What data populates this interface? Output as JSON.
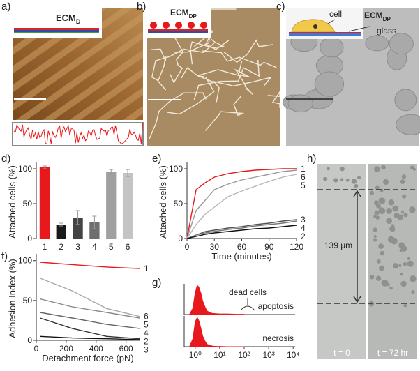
{
  "panels": [
    {
      "label": "a)",
      "inset": {
        "main": "ECM",
        "sub": "D"
      }
    },
    {
      "label": "b)",
      "inset": {
        "main": "ECM",
        "sub": "DP"
      }
    },
    {
      "label": "c)",
      "cell": "cell",
      "ecm": {
        "main": "ECM",
        "sub": "DP"
      },
      "glass": "glass"
    },
    {
      "label": "d)"
    },
    {
      "label": "e)"
    },
    {
      "label": "f)"
    },
    {
      "label": "g)"
    },
    {
      "label": "h)",
      "distance": "139 μm",
      "left": "t = 0",
      "right": "t = 72 hr"
    }
  ],
  "chart_data": [
    {
      "type": "bar",
      "ylabel": "Attached cells (%)",
      "categories": [
        "1",
        "2",
        "3",
        "4",
        "5",
        "6"
      ],
      "values": [
        102,
        20,
        30,
        23,
        96,
        94
      ],
      "errors": [
        2,
        2,
        10,
        9,
        3,
        5
      ],
      "colors": [
        "#e8191c",
        "#1a1a1a",
        "#444444",
        "#6e6e6e",
        "#a0a0a0",
        "#c4c4c4"
      ],
      "ylim": [
        0,
        105
      ],
      "yticks": [
        0,
        50,
        100
      ]
    },
    {
      "type": "line",
      "xlabel": "Time (minutes)",
      "ylabel": "Attached cells (%)",
      "x": [
        0,
        10,
        20,
        30,
        45,
        60,
        75,
        90,
        105,
        120
      ],
      "series": [
        {
          "name": "1",
          "color": "#e8191c",
          "values": [
            0,
            70,
            80,
            88,
            93,
            96,
            98,
            99,
            100,
            100
          ]
        },
        {
          "name": "6",
          "color": "#9a9a9a",
          "values": [
            0,
            40,
            55,
            70,
            78,
            84,
            88,
            92,
            96,
            98
          ]
        },
        {
          "name": "5",
          "color": "#b5b5b5",
          "values": [
            0,
            20,
            35,
            45,
            60,
            68,
            75,
            82,
            88,
            92
          ]
        },
        {
          "name": "3",
          "color": "#555555",
          "values": [
            0,
            5,
            10,
            12,
            15,
            17,
            20,
            22,
            25,
            27
          ]
        },
        {
          "name": "4",
          "color": "#777777",
          "values": [
            0,
            5,
            8,
            10,
            13,
            15,
            18,
            20,
            22,
            25
          ]
        },
        {
          "name": "2",
          "color": "#111111",
          "values": [
            0,
            3,
            6,
            8,
            10,
            12,
            14,
            15,
            17,
            19
          ]
        }
      ],
      "xlim": [
        0,
        120
      ],
      "xticks": [
        0,
        30,
        60,
        90,
        120
      ],
      "ylim": [
        0,
        105
      ],
      "yticks": [
        0,
        50,
        100
      ]
    },
    {
      "type": "line",
      "xlabel": "Detachment force (pN)",
      "ylabel": "Adhesion Index (%)",
      "x": [
        25,
        240,
        470,
        690
      ],
      "series": [
        {
          "name": "1",
          "color": "#e8191c",
          "values": [
            98,
            95,
            92,
            90
          ]
        },
        {
          "name": "6",
          "color": "#a8a8a8",
          "values": [
            78,
            62,
            40,
            30
          ]
        },
        {
          "name": "5",
          "color": "#8a8a8a",
          "values": [
            52,
            42,
            35,
            28
          ]
        },
        {
          "name": "4",
          "color": "#666666",
          "values": [
            35,
            28,
            20,
            15
          ]
        },
        {
          "name": "2",
          "color": "#333333",
          "values": [
            28,
            15,
            5,
            2
          ]
        },
        {
          "name": "3",
          "color": "#111111",
          "values": [
            5,
            3,
            2,
            1
          ]
        }
      ],
      "xlim": [
        0,
        690
      ],
      "xticks": [
        0,
        200,
        400,
        600
      ],
      "ylim": [
        0,
        105
      ],
      "yticks": [
        0,
        50,
        100
      ]
    },
    {
      "type": "area",
      "log_x": true,
      "annotation": "dead cells",
      "x": [
        0.6,
        0.8,
        1,
        1.2,
        1.4,
        1.7,
        2,
        2.5,
        3,
        4,
        5,
        7,
        10,
        20,
        50,
        100
      ],
      "series": [
        {
          "name": "apoptosis",
          "color": "#e8191c",
          "values": [
            2,
            20,
            70,
            95,
            90,
            70,
            45,
            25,
            12,
            6,
            4,
            3,
            2,
            2,
            1,
            1
          ]
        },
        {
          "name": "necrosis",
          "color": "#e8191c",
          "values": [
            2,
            25,
            80,
            95,
            85,
            60,
            35,
            18,
            8,
            4,
            2,
            1,
            1,
            0,
            0,
            0
          ]
        }
      ],
      "xlim": [
        0.6,
        12000
      ],
      "ylim": [
        0,
        100
      ],
      "xticks": [
        {
          "value": 1,
          "label": "10⁰"
        },
        {
          "value": 10,
          "label": "10¹"
        },
        {
          "value": 100,
          "label": "10²"
        },
        {
          "value": 1000,
          "label": "10³"
        },
        {
          "value": 10000,
          "label": "10⁴"
        }
      ]
    }
  ]
}
